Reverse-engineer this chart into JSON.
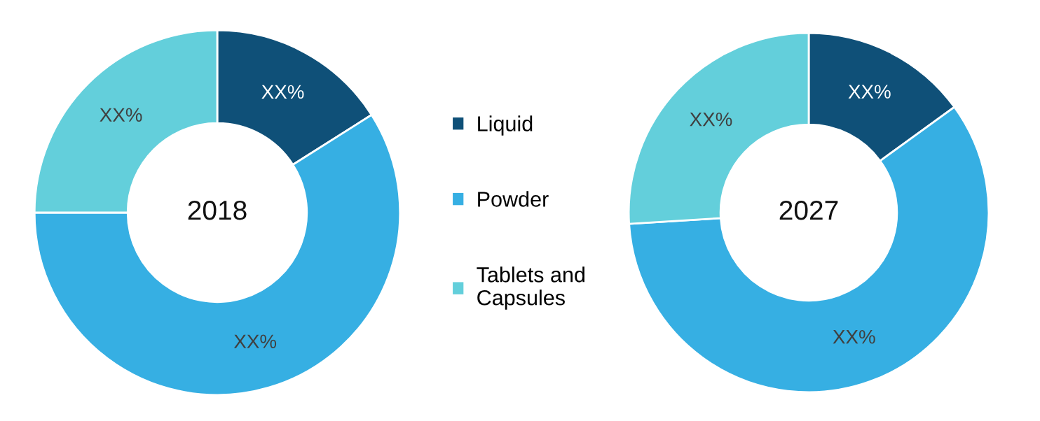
{
  "chart_data": [
    {
      "type": "donut",
      "title": "2018",
      "categories": [
        "Liquid",
        "Powder",
        "Tablets and\nCapsules"
      ],
      "values": [
        16,
        59,
        25
      ],
      "colors": [
        "#0f5078",
        "#36afe3",
        "#63cfdb"
      ],
      "value_labels": [
        "XX%",
        "XX%",
        "XX%"
      ],
      "legend": "right"
    },
    {
      "type": "donut",
      "title": "2027",
      "categories": [
        null,
        null,
        null
      ],
      "values": [
        15,
        59,
        26
      ],
      "colors": [
        "#0f5078",
        "#36afe3",
        "#63cfdb"
      ],
      "value_labels": [
        "XX%",
        "XX%",
        "XX%"
      ]
    }
  ]
}
